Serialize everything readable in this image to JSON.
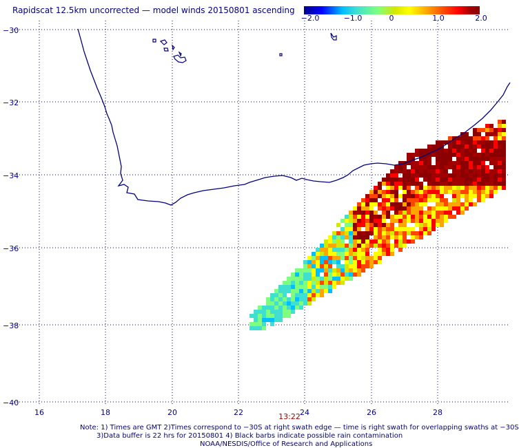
{
  "title": "Rapidscat 12.5km uncorrected — model winds 20150801 ascending",
  "colorbar": {
    "ticks": [
      {
        "value": -2.0,
        "label": "−2.0"
      },
      {
        "value": -1.0,
        "label": "−1.0"
      },
      {
        "value": 0,
        "label": "0"
      },
      {
        "value": 1.0,
        "label": "1.0"
      },
      {
        "value": 2.0,
        "label": "2.0"
      }
    ],
    "range": [
      -2.0,
      2.0
    ],
    "colors": [
      "#00008b",
      "#0000ff",
      "#00bfff",
      "#40e0d0",
      "#7fff7f",
      "#d4e800",
      "#ffff00",
      "#ffa500",
      "#ff4500",
      "#ff0000",
      "#a00000",
      "#8b0000"
    ]
  },
  "axes": {
    "lat_labels": [
      "−30",
      "−32",
      "−34",
      "−36",
      "−38",
      "−40"
    ],
    "lon_labels": [
      "16",
      "18",
      "20",
      "22",
      "24",
      "26",
      "28"
    ]
  },
  "time_label": "13:22",
  "notes": {
    "line1": "Note: 1) Times are GMT 2)Times correspond to −30S at right swath edge — time is right swath for overlapping swaths at −30S",
    "line2": "3)Data buffer is 22 hrs for 20150801 4) Black barbs indicate possible rain contamination",
    "line3": "NOAA/NESDIS/Office of Research and Applications"
  }
}
